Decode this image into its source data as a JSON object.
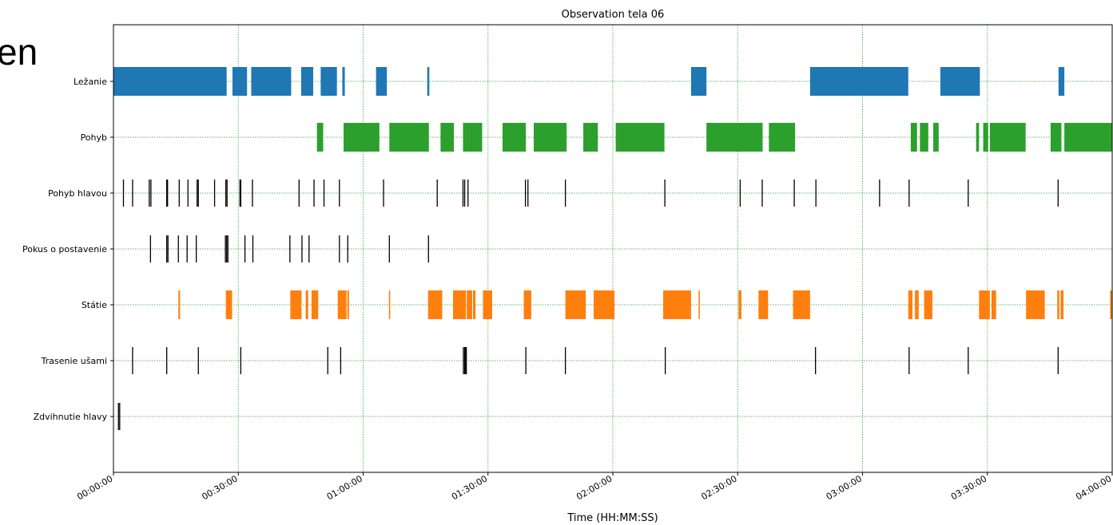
{
  "fragment_text": "en",
  "chart_data": {
    "type": "timeline",
    "title": "Observation tela 06",
    "xlabel": "Time (HH:MM:SS)",
    "ylabel": "",
    "x_unit": "minutes",
    "xlim": [
      0,
      240
    ],
    "x_ticks": [
      0,
      30,
      60,
      90,
      120,
      150,
      180,
      210,
      240
    ],
    "x_tick_labels": [
      "00:00:00",
      "00:30:00",
      "01:00:00",
      "01:30:00",
      "02:00:00",
      "02:30:00",
      "03:00:00",
      "03:30:00",
      "04:00:00"
    ],
    "grid": true,
    "categories": [
      "Ležanie",
      "Pohyb",
      "Pohyb hlavou",
      "Pokus o postavenie",
      "Státie",
      "Trasenie ušami",
      "Zdvihnutie hlavy"
    ],
    "series": [
      {
        "name": "Ležanie",
        "color": "#1f77b4",
        "kind": "span",
        "intervals": [
          [
            0.0,
            27.2
          ],
          [
            28.6,
            32.1
          ],
          [
            33.1,
            42.7
          ],
          [
            45.1,
            48.0
          ],
          [
            49.8,
            53.7
          ],
          [
            55.0,
            55.6
          ],
          [
            63.1,
            65.7
          ],
          [
            75.4,
            75.9
          ],
          [
            138.8,
            142.5
          ],
          [
            167.4,
            191.0
          ],
          [
            198.7,
            208.2
          ],
          [
            227.1,
            228.5
          ]
        ]
      },
      {
        "name": "Pohyb",
        "color": "#2ca02c",
        "kind": "span",
        "intervals": [
          [
            48.9,
            50.4
          ],
          [
            55.3,
            63.9
          ],
          [
            66.3,
            75.8
          ],
          [
            78.6,
            81.8
          ],
          [
            84.0,
            88.6
          ],
          [
            93.5,
            99.1
          ],
          [
            101.0,
            108.9
          ],
          [
            112.9,
            116.4
          ],
          [
            120.7,
            132.4
          ],
          [
            142.5,
            156.0
          ],
          [
            157.5,
            163.8
          ],
          [
            191.6,
            193.1
          ],
          [
            193.8,
            195.8
          ],
          [
            197.0,
            198.3
          ],
          [
            207.3,
            208.0
          ],
          [
            209.0,
            210.2
          ],
          [
            210.6,
            219.2
          ],
          [
            225.2,
            227.8
          ],
          [
            228.5,
            240.0
          ]
        ]
      },
      {
        "name": "Pohyb hlavou",
        "color": "#000000",
        "kind": "events",
        "events": [
          2.4,
          4.6,
          8.6,
          9.0,
          12.8,
          13.0,
          15.8,
          17.9,
          20.1,
          20.4,
          24.3,
          27.0,
          27.3,
          30.4,
          30.6,
          33.4,
          44.6,
          48.2,
          50.6,
          54.3,
          64.9,
          77.8,
          84.0,
          84.4,
          85.2,
          99.0,
          99.6,
          108.6,
          132.5,
          150.6,
          155.9,
          163.6,
          168.8,
          184.1,
          191.2,
          205.4,
          227.0
        ]
      },
      {
        "name": "Pokus o postavenie",
        "color": "#000000",
        "kind": "events",
        "events": [
          8.9,
          12.8,
          13.1,
          15.6,
          17.7,
          19.9,
          26.9,
          27.2,
          27.5,
          31.6,
          33.5,
          42.4,
          45.3,
          47.0,
          54.3,
          56.3,
          66.3,
          75.7
        ]
      },
      {
        "name": "Státie",
        "color": "#ff7f0e",
        "kind": "span",
        "intervals": [
          [
            15.6,
            16.0
          ],
          [
            27.0,
            28.5
          ],
          [
            42.5,
            45.2
          ],
          [
            46.2,
            46.8
          ],
          [
            47.6,
            49.2
          ],
          [
            53.9,
            56.0
          ],
          [
            56.2,
            56.6
          ],
          [
            66.2,
            66.5
          ],
          [
            75.6,
            79.0
          ],
          [
            81.6,
            84.7
          ],
          [
            84.9,
            86.2
          ],
          [
            86.4,
            87.0
          ],
          [
            88.8,
            91.0
          ],
          [
            98.6,
            100.4
          ],
          [
            108.6,
            113.5
          ],
          [
            115.4,
            120.4
          ],
          [
            132.1,
            138.8
          ],
          [
            140.6,
            140.9
          ],
          [
            150.2,
            150.9
          ],
          [
            155.0,
            157.3
          ],
          [
            163.3,
            167.4
          ],
          [
            191.0,
            192.0
          ],
          [
            192.6,
            193.5
          ],
          [
            194.8,
            196.8
          ],
          [
            208.0,
            210.6
          ],
          [
            211.0,
            212.1
          ],
          [
            219.3,
            223.8
          ],
          [
            226.8,
            227.3
          ],
          [
            227.6,
            228.3
          ],
          [
            239.5,
            240.0
          ]
        ]
      },
      {
        "name": "Trasenie ušami",
        "color": "#000000",
        "kind": "events",
        "events": [
          4.6,
          12.8,
          20.4,
          30.6,
          51.5,
          54.6,
          84.1,
          84.4,
          84.6,
          84.8,
          99.1,
          108.6,
          132.6,
          168.7,
          191.2,
          205.4,
          227.0
        ]
      },
      {
        "name": "Zdvihnutie hlavy",
        "color": "#000000",
        "kind": "events",
        "events": [
          1.2,
          1.5
        ]
      }
    ]
  }
}
